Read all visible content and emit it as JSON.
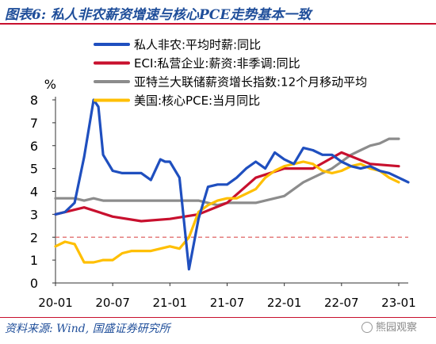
{
  "header": {
    "title": "图表6: 私人非农薪资增速与核心PCE走势基本一致"
  },
  "footer": {
    "source": "资料来源: Wind, 国盛证券研究所",
    "watermark": "熊园观察"
  },
  "colors": {
    "accent": "#c8102e",
    "title": "#1f4e9a"
  },
  "chart_data": {
    "type": "line",
    "title": "图表6: 私人非农薪资增速与核心PCE走势基本一致",
    "ylabel": "%",
    "xlabel": "",
    "ylim": [
      0,
      8
    ],
    "yticks": [
      0,
      1,
      2,
      3,
      4,
      5,
      6,
      7,
      8
    ],
    "xlim": [
      0,
      37
    ],
    "xticks": [
      {
        "x": 0,
        "label": "20-01"
      },
      {
        "x": 6,
        "label": "20-07"
      },
      {
        "x": 12,
        "label": "21-01"
      },
      {
        "x": 18,
        "label": "21-07"
      },
      {
        "x": 24,
        "label": "22-01"
      },
      {
        "x": 30,
        "label": "22-07"
      },
      {
        "x": 36,
        "label": "23-01"
      }
    ],
    "reference_line": {
      "y": 2,
      "style": "dashed",
      "color": "#e06666"
    },
    "legend_position": "top-left",
    "series": [
      {
        "name": "私人非农:平均时薪:同比",
        "color": "#1f4fbf",
        "x": [
          0,
          1,
          2,
          3,
          4,
          4.5,
          5,
          6,
          7,
          8,
          9,
          10,
          11,
          11.5,
          12,
          13,
          14,
          15,
          16,
          17,
          18,
          19,
          20,
          21,
          22,
          23,
          24,
          25,
          26,
          27,
          28,
          29,
          30,
          31,
          32,
          33,
          34,
          35,
          36,
          37
        ],
        "values": [
          3.0,
          3.1,
          3.5,
          5.5,
          8.0,
          7.7,
          5.6,
          4.9,
          4.8,
          4.8,
          4.8,
          4.5,
          5.4,
          5.3,
          5.3,
          4.6,
          0.6,
          2.8,
          4.2,
          4.3,
          4.3,
          4.6,
          5.0,
          5.3,
          5.0,
          5.7,
          5.4,
          5.2,
          5.9,
          5.8,
          5.6,
          5.6,
          5.3,
          5.1,
          5.0,
          5.1,
          4.9,
          4.8,
          4.6,
          4.4
        ]
      },
      {
        "name": "ECI:私营企业:薪资:非季调:同比",
        "color": "#c8102e",
        "x": [
          0,
          3,
          6,
          9,
          12,
          15,
          18,
          21,
          24,
          27,
          30,
          33,
          36
        ],
        "values": [
          3.0,
          3.3,
          2.9,
          2.7,
          2.8,
          3.0,
          3.5,
          4.6,
          5.0,
          5.0,
          5.7,
          5.2,
          5.1
        ]
      },
      {
        "name": "亚特兰大联储薪资增长指数:12个月移动平均",
        "color": "#8c8c8c",
        "x": [
          0,
          2,
          3,
          4,
          5,
          7,
          9,
          11,
          13,
          15,
          16,
          17,
          18,
          19,
          20,
          21,
          22,
          23,
          24,
          25,
          26,
          27,
          28,
          29,
          30,
          31,
          32,
          33,
          34,
          35,
          36
        ],
        "values": [
          3.7,
          3.7,
          3.6,
          3.7,
          3.6,
          3.6,
          3.6,
          3.6,
          3.6,
          3.6,
          3.5,
          3.4,
          3.5,
          3.5,
          3.5,
          3.5,
          3.6,
          3.7,
          3.8,
          4.1,
          4.4,
          4.6,
          4.8,
          5.0,
          5.3,
          5.6,
          5.8,
          6.0,
          6.1,
          6.3,
          6.3
        ]
      },
      {
        "name": "美国:核心PCE:当月同比",
        "color": "#ffbf00",
        "x": [
          0,
          1,
          2,
          3,
          4,
          5,
          6,
          7,
          8,
          9,
          10,
          11,
          12,
          13,
          14,
          15,
          16,
          17,
          18,
          19,
          20,
          21,
          22,
          23,
          24,
          25,
          26,
          27,
          28,
          29,
          30,
          31,
          32,
          33,
          34,
          35,
          36
        ],
        "values": [
          1.6,
          1.8,
          1.7,
          0.9,
          0.9,
          1.0,
          1.0,
          1.3,
          1.4,
          1.4,
          1.4,
          1.5,
          1.6,
          1.5,
          2.0,
          3.1,
          3.4,
          3.6,
          3.7,
          3.7,
          3.9,
          4.1,
          4.6,
          4.9,
          5.1,
          5.2,
          5.3,
          5.2,
          4.9,
          4.8,
          4.9,
          5.1,
          5.2,
          5.0,
          4.9,
          4.6,
          4.4
        ]
      }
    ]
  }
}
